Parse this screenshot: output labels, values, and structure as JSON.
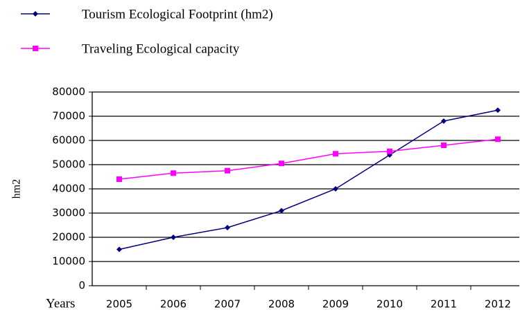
{
  "chart_data": {
    "type": "line",
    "xlabel": "Years",
    "ylabel": "hm2",
    "categories": [
      "2005",
      "2006",
      "2007",
      "2008",
      "2009",
      "2010",
      "2011",
      "2012"
    ],
    "series": [
      {
        "name": "Tourism Ecological Footprint (hm2)",
        "color": "#000080",
        "marker": "diamond",
        "values": [
          15000,
          20000,
          24000,
          31000,
          40000,
          54000,
          68000,
          72500
        ]
      },
      {
        "name": "Traveling Ecological capacity",
        "color": "#ff00ff",
        "marker": "square",
        "values": [
          44000,
          46500,
          47500,
          50500,
          54500,
          55500,
          58000,
          60500
        ]
      }
    ],
    "ylim": [
      0,
      80000
    ],
    "yticks": [
      0,
      10000,
      20000,
      30000,
      40000,
      50000,
      60000,
      70000,
      80000
    ],
    "grid": true
  }
}
